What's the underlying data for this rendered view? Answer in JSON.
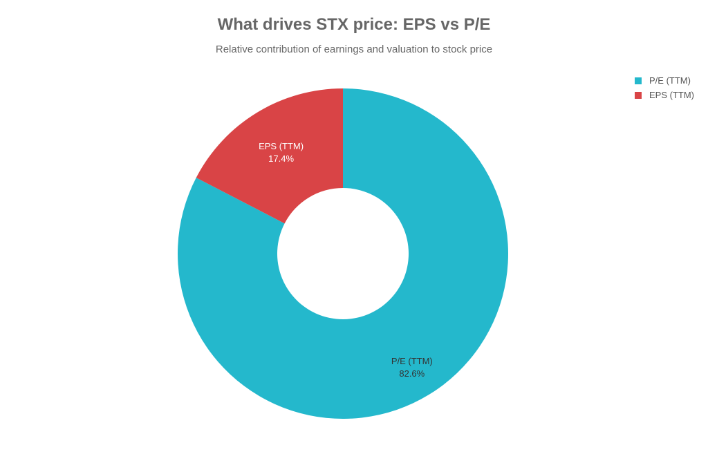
{
  "chart_data": {
    "type": "pie",
    "title": "What drives STX price: EPS vs P/E",
    "subtitle": "Relative contribution of earnings and valuation to stock price",
    "donut": true,
    "legend_position": "top-right",
    "series": [
      {
        "name": "P/E (TTM)",
        "value": 82.6,
        "label": "82.6%",
        "color": "#24b8cc",
        "label_color": "#333333"
      },
      {
        "name": "EPS (TTM)",
        "value": 17.4,
        "label": "17.4%",
        "color": "#d94446",
        "label_color": "#ffffff"
      }
    ]
  }
}
